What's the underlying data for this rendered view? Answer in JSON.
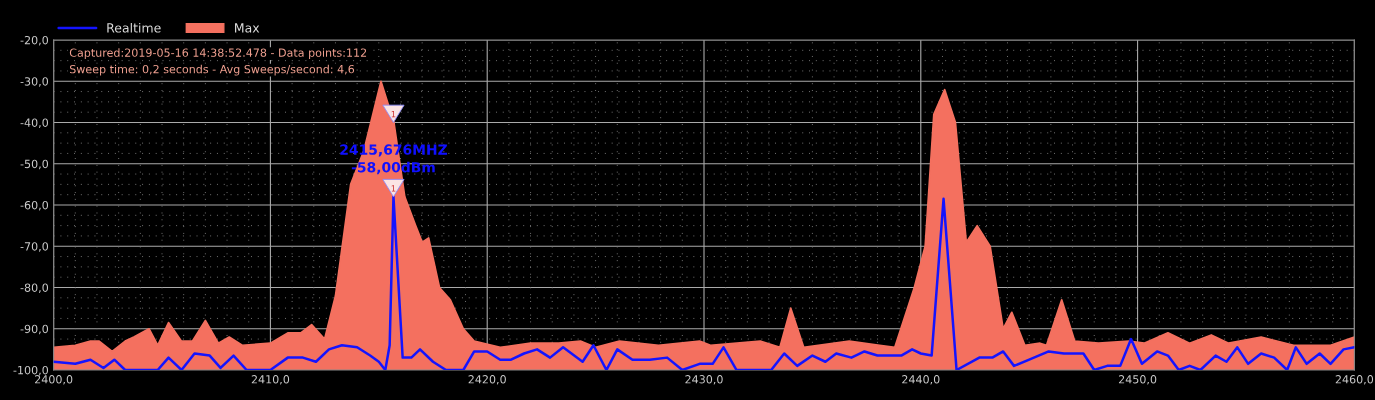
{
  "chart_data": {
    "type": "area",
    "xlim": [
      2400,
      2460
    ],
    "ylim": [
      -100,
      -20
    ],
    "xticks": [
      {
        "value": 2400,
        "label": "2400,0"
      },
      {
        "value": 2410,
        "label": "2410,0"
      },
      {
        "value": 2420,
        "label": "2420,0"
      },
      {
        "value": 2430,
        "label": "2430,0"
      },
      {
        "value": 2440,
        "label": "2440,0"
      },
      {
        "value": 2450,
        "label": "2450,0"
      },
      {
        "value": 2460,
        "label": "2460,0"
      }
    ],
    "yticks": [
      {
        "value": -20,
        "label": "-20,0"
      },
      {
        "value": -30,
        "label": "-30,0"
      },
      {
        "value": -40,
        "label": "-40,0"
      },
      {
        "value": -50,
        "label": "-50,0"
      },
      {
        "value": -60,
        "label": "-60,0"
      },
      {
        "value": -70,
        "label": "-70,0"
      },
      {
        "value": -80,
        "label": "-80,0"
      },
      {
        "value": -90,
        "label": "-90,0"
      },
      {
        "value": -100,
        "label": "-100,0"
      }
    ],
    "grid": true,
    "legend": "top left",
    "annotations": [
      "Captured:2019-05-16 14:38:52.478 - Data points:112",
      "Sweep time: 0,2 seconds - Avg Sweeps/second: 4,6",
      "2415,676MHZ\n-58,00dBm",
      {
        "text": "1",
        "x": 2415.676,
        "y": -40
      },
      {
        "text": "1",
        "x": 2415.676,
        "y": -58
      }
    ],
    "series": [
      {
        "name": "Max",
        "color": "#f4705f",
        "x": [
          2400.0,
          2401.0,
          2401.7,
          2402.1,
          2402.7,
          2403.3,
          2403.7,
          2404.4,
          2404.8,
          2405.3,
          2405.9,
          2406.4,
          2407.0,
          2407.6,
          2408.1,
          2408.7,
          2410.0,
          2410.8,
          2411.4,
          2411.9,
          2412.5,
          2413.0,
          2413.7,
          2414.3,
          2415.1,
          2415.7,
          2416.2,
          2416.7,
          2417.0,
          2417.3,
          2417.8,
          2418.3,
          2418.9,
          2419.4,
          2420.6,
          2422.0,
          2423.3,
          2424.3,
          2425.0,
          2426.1,
          2427.9,
          2429.8,
          2430.3,
          2432.6,
          2433.5,
          2434.0,
          2434.6,
          2436.7,
          2438.1,
          2438.8,
          2439.7,
          2440.2,
          2440.6,
          2441.1,
          2441.6,
          2442.1,
          2442.6,
          2443.2,
          2443.8,
          2444.2,
          2444.8,
          2445.5,
          2445.8,
          2446.5,
          2447.1,
          2448.2,
          2449.6,
          2450.3,
          2451.4,
          2452.4,
          2453.4,
          2454.2,
          2455.7,
          2457.2,
          2458.9,
          2460.0
        ],
        "values": [
          -94.5,
          -94,
          -93,
          -93,
          -95.5,
          -93,
          -92,
          -90,
          -94,
          -88.5,
          -93,
          -93,
          -88,
          -93.5,
          -92,
          -94,
          -93.5,
          -91,
          -91,
          -89,
          -92.5,
          -82,
          -55,
          -47,
          -30,
          -40,
          -58,
          -65,
          -69,
          -68,
          -80,
          -83,
          -90,
          -93,
          -94.5,
          -93.5,
          -93.5,
          -93,
          -94.5,
          -93,
          -94,
          -93,
          -94,
          -93,
          -94.5,
          -85,
          -94.5,
          -93,
          -94,
          -94.5,
          -80,
          -70,
          -38,
          -32,
          -40,
          -69,
          -65,
          -70,
          -90,
          -86,
          -94,
          -93.5,
          -94,
          -83,
          -93,
          -93.5,
          -93,
          -93.5,
          -91,
          -93.5,
          -91.5,
          -93.5,
          -92,
          -94,
          -94,
          -92
        ]
      },
      {
        "name": "Realtime",
        "type": "line",
        "color": "#1414ff",
        "x": [
          2400.0,
          2401.0,
          2401.7,
          2402.3,
          2402.8,
          2403.3,
          2404.8,
          2405.3,
          2405.9,
          2406.5,
          2407.2,
          2407.7,
          2408.3,
          2408.9,
          2410.0,
          2410.8,
          2411.5,
          2412.1,
          2412.7,
          2413.3,
          2414.0,
          2414.6,
          2415.0,
          2415.3,
          2415.5,
          2415.676,
          2416.1,
          2416.5,
          2416.9,
          2417.5,
          2418.1,
          2418.9,
          2419.4,
          2420.0,
          2420.6,
          2421.1,
          2421.7,
          2422.3,
          2422.9,
          2423.5,
          2424.4,
          2424.9,
          2425.5,
          2426.0,
          2426.7,
          2427.5,
          2428.3,
          2429.0,
          2429.8,
          2430.4,
          2430.9,
          2431.5,
          2433.1,
          2433.7,
          2434.3,
          2435.0,
          2435.6,
          2436.1,
          2436.8,
          2437.4,
          2438.0,
          2439.1,
          2439.6,
          2440.0,
          2440.5,
          2441.05,
          2441.65,
          2442.7,
          2443.3,
          2443.8,
          2444.3,
          2445.0,
          2445.9,
          2446.6,
          2447.5,
          2448.0,
          2448.6,
          2449.2,
          2449.7,
          2450.2,
          2450.9,
          2451.4,
          2451.9,
          2452.4,
          2452.9,
          2453.6,
          2454.1,
          2454.6,
          2455.1,
          2455.7,
          2456.3,
          2456.9,
          2457.3,
          2457.8,
          2458.4,
          2458.9,
          2459.5,
          2460.0
        ],
        "values": [
          -98,
          -98.5,
          -97.5,
          -99.5,
          -97.5,
          -100,
          -100,
          -97,
          -100,
          -96,
          -96.5,
          -99.5,
          -96.5,
          -100,
          -100,
          -97,
          -97,
          -98,
          -95,
          -94,
          -94.5,
          -96.5,
          -98,
          -100,
          -94,
          -58,
          -97,
          -97,
          -95,
          -98,
          -100,
          -100,
          -95.5,
          -95.5,
          -97.5,
          -97.5,
          -96,
          -95,
          -97,
          -94.5,
          -98,
          -94,
          -100,
          -95,
          -97.5,
          -97.5,
          -97,
          -100,
          -98.5,
          -98.5,
          -94.5,
          -100,
          -100,
          -96,
          -99,
          -96.5,
          -98,
          -96,
          -97,
          -95.5,
          -96.5,
          -96.5,
          -95,
          -96,
          -96.5,
          -58.5,
          -100,
          -97,
          -97,
          -95.5,
          -99,
          -97.5,
          -95.5,
          -96,
          -96,
          -100,
          -99,
          -99,
          -92.5,
          -98.5,
          -95.5,
          -96.5,
          -100,
          -99,
          -100,
          -96.5,
          -98,
          -94.5,
          -98.5,
          -96,
          -97,
          -100,
          -94.5,
          -98.5,
          -96,
          -98.5,
          -95,
          -94.5
        ]
      }
    ]
  }
}
